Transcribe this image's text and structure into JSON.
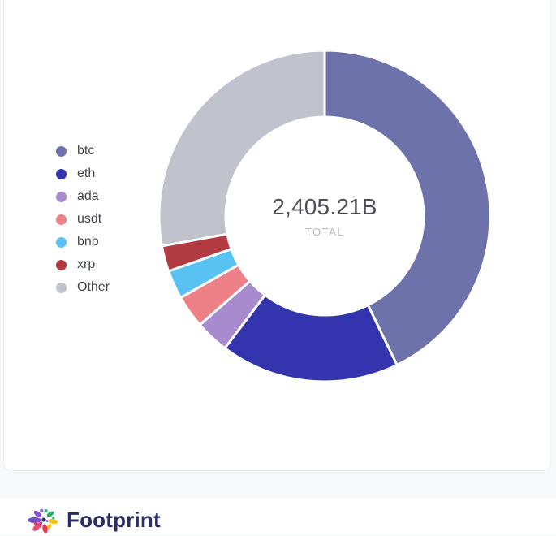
{
  "page": {
    "background": "#f7f8fa",
    "card_background": "#ffffff",
    "card_border": "#ecedf1"
  },
  "chart_data": {
    "type": "pie",
    "donut": true,
    "legend_position": "left",
    "start_angle_deg": 0,
    "clockwise": true,
    "unit": "B",
    "total_label": "2,405.21B",
    "total_caption": "TOTAL",
    "series": [
      {
        "name": "btc",
        "value": 1029.43,
        "percent": 42.8,
        "color": "#6e72ab"
      },
      {
        "name": "eth",
        "value": 420.91,
        "percent": 17.5,
        "color": "#3434ae"
      },
      {
        "name": "ada",
        "value": 79.37,
        "percent": 3.3,
        "color": "#a88bce"
      },
      {
        "name": "usdt",
        "value": 76.97,
        "percent": 3.2,
        "color": "#ee8188"
      },
      {
        "name": "bnb",
        "value": 67.35,
        "percent": 2.8,
        "color": "#58c3f2"
      },
      {
        "name": "xrp",
        "value": 60.13,
        "percent": 2.5,
        "color": "#b23b41"
      },
      {
        "name": "Other",
        "value": 671.05,
        "percent": 27.9,
        "color": "#c0c2cc"
      }
    ]
  },
  "footer": {
    "brand": "Footprint"
  }
}
